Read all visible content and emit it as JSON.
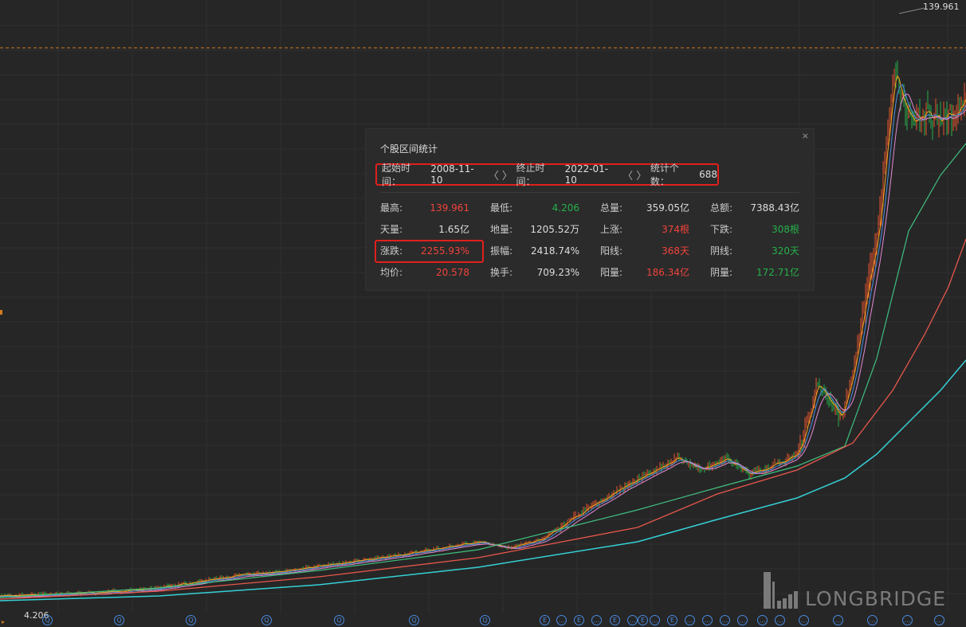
{
  "chart": {
    "high_label": "139.961",
    "low_label": "4.206",
    "colors": {
      "background": "#262626",
      "up": "#e8542c",
      "down": "#26b04a",
      "ma5": "#f5a623",
      "ma10": "#4a90e2",
      "ma20": "#e58ad6",
      "ma60": "#3fbf7f",
      "ma120": "#e8574b",
      "ma250": "#35d0d6",
      "dashed_line": "#d07a22"
    }
  },
  "panel": {
    "title": "个股区间统计",
    "close": "×",
    "start_label": "起始时间：",
    "start_value": "2008-11-10",
    "end_label": "终止时间：",
    "end_value": "2022-01-10",
    "count_label": "统计个数：",
    "count_value": "688",
    "arrows": "〈 〉",
    "stats": [
      {
        "label": "最高:",
        "value": "139.961",
        "color": "red"
      },
      {
        "label": "最低:",
        "value": "4.206",
        "color": "green"
      },
      {
        "label": "总量:",
        "value": "359.05亿",
        "color": "white"
      },
      {
        "label": "总额:",
        "value": "7388.43亿",
        "color": "white"
      },
      {
        "label": "天量:",
        "value": "1.65亿",
        "color": "white"
      },
      {
        "label": "地量:",
        "value": "1205.52万",
        "color": "white"
      },
      {
        "label": "上涨:",
        "value": "374根",
        "color": "red"
      },
      {
        "label": "下跌:",
        "value": "308根",
        "color": "green"
      },
      {
        "label": "涨跌:",
        "value": "2255.93%",
        "color": "red"
      },
      {
        "label": "振幅:",
        "value": "2418.74%",
        "color": "white"
      },
      {
        "label": "阳线:",
        "value": "368天",
        "color": "red"
      },
      {
        "label": "阴线:",
        "value": "320天",
        "color": "green"
      },
      {
        "label": "均价:",
        "value": "20.578",
        "color": "red"
      },
      {
        "label": "换手:",
        "value": "709.23%",
        "color": "white"
      },
      {
        "label": "阳量:",
        "value": "186.34亿",
        "color": "red"
      },
      {
        "label": "阴量:",
        "value": "172.71亿",
        "color": "green"
      }
    ]
  },
  "logo": {
    "text": "LONGBRIDGE"
  },
  "events": [
    "Q",
    "Q",
    "Q",
    "Q",
    "Q",
    "Q",
    "Q",
    "E",
    "…",
    "E",
    "…",
    "E",
    "…",
    "E",
    "…",
    "E",
    "…",
    "…",
    "…",
    "…",
    "…",
    "…",
    "…",
    "…",
    "…",
    "…",
    "…"
  ]
}
